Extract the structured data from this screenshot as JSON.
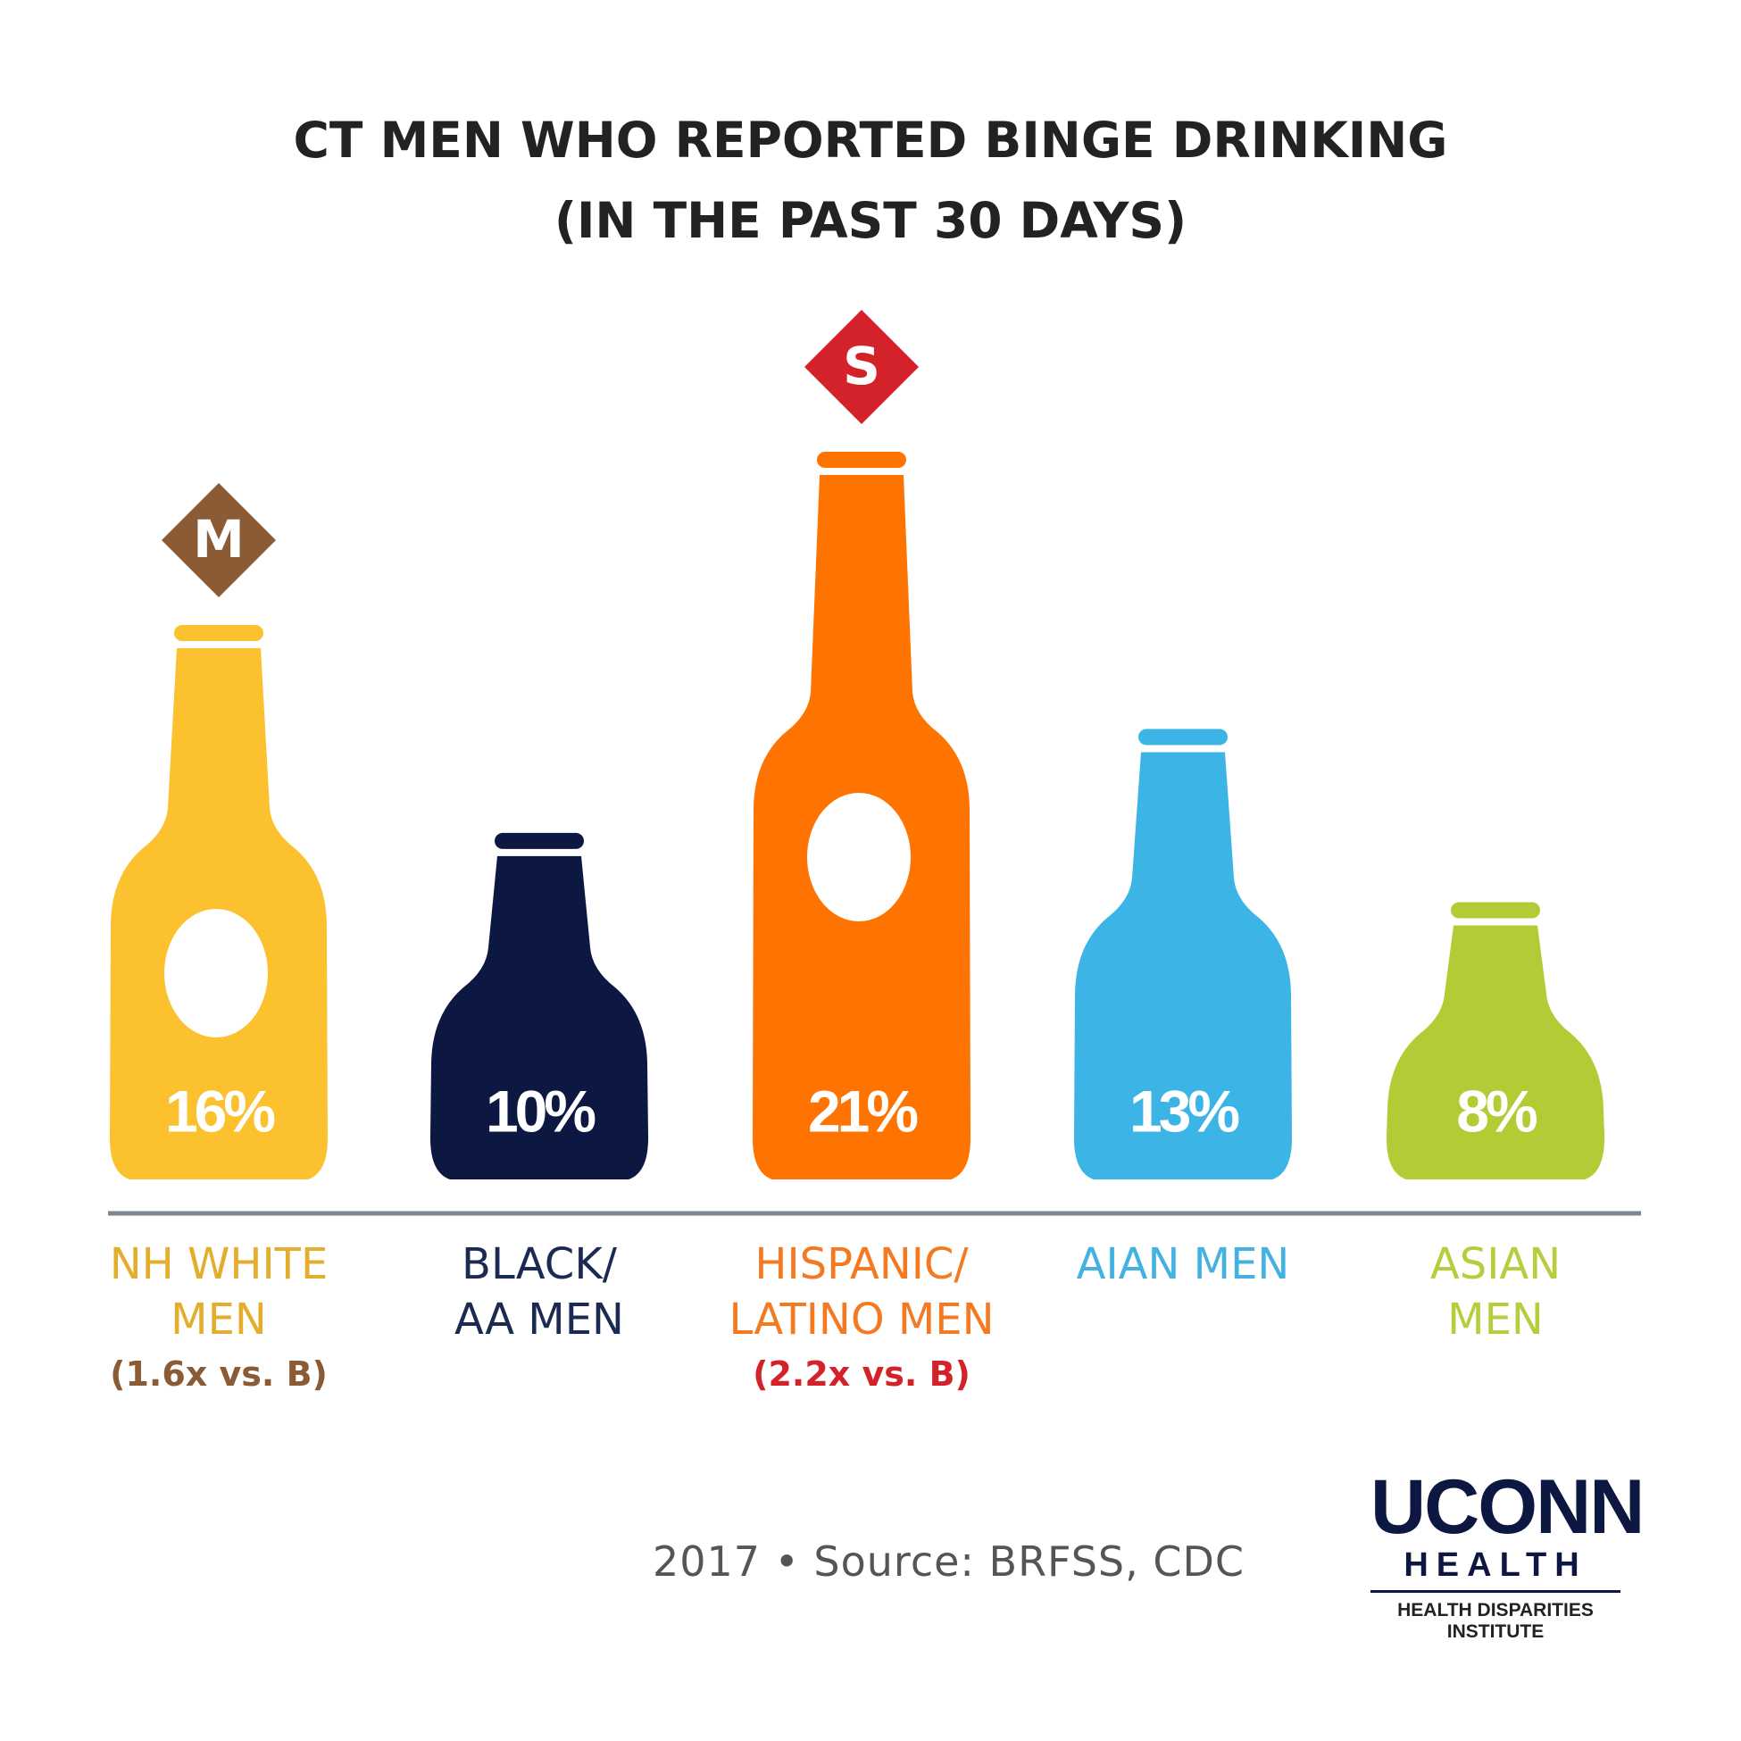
{
  "chart_data": {
    "type": "bottle",
    "title": "CT MEN WHO REPORTED BINGE DRINKING (IN THE PAST 30 DAYS)",
    "categories": [
      "NH WHITE MEN",
      "BLACK/ AA MEN",
      "HISPANIC/ LATINO MEN",
      "AIAN MEN",
      "ASIAN MEN"
    ],
    "values": [
      16,
      10,
      21,
      13,
      8
    ],
    "value_labels": [
      "16%",
      "10%",
      "21%",
      "13%",
      "8%"
    ],
    "colors": [
      "#fbc12e",
      "#0c1842",
      "#ff7400",
      "#3cb5e6",
      "#b5cb36"
    ],
    "label_colors": [
      "#e2ae2c",
      "#1b2a52",
      "#f47a22",
      "#43b2e3",
      "#b9cc3d"
    ],
    "markers": [
      "M",
      null,
      "S",
      null,
      null
    ],
    "marker_colors": [
      "#8a5b35",
      null,
      "#d4222b",
      null,
      null
    ],
    "notes": [
      "(1.6x vs. B)",
      null,
      "(2.2x vs. B)",
      null,
      null
    ],
    "source": "2017 • Source:  BRFSS, CDC"
  },
  "logo": {
    "name": "UCONN",
    "unit": "HEALTH",
    "institute": "HEALTH DISPARITIES INSTITUTE"
  }
}
